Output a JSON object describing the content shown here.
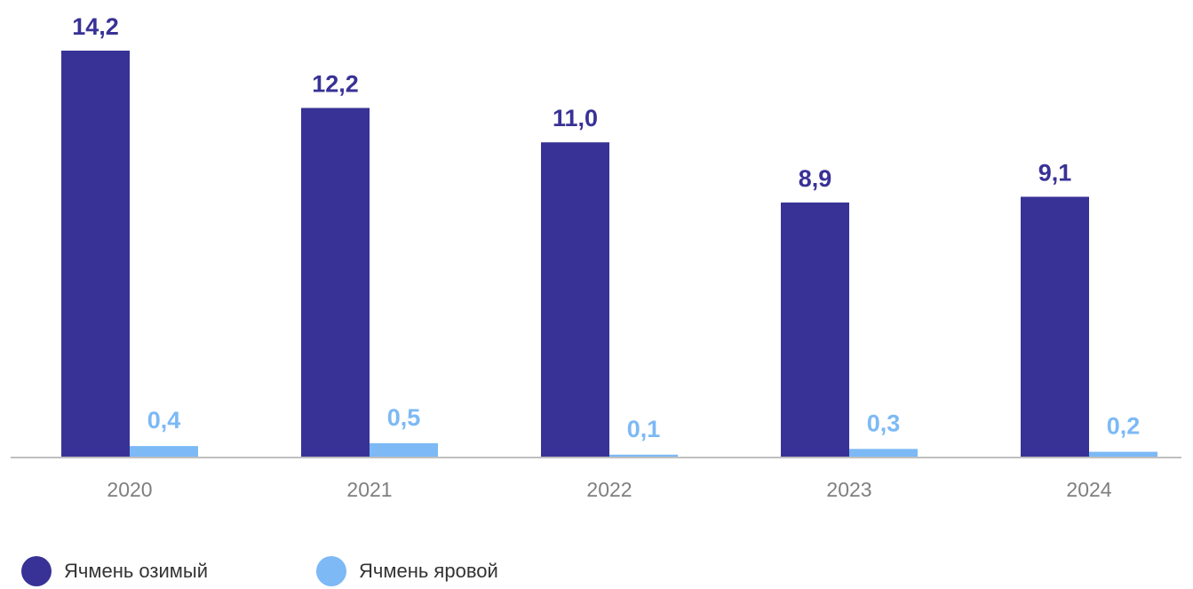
{
  "chart_data": {
    "type": "bar",
    "categories": [
      "2020",
      "2021",
      "2022",
      "2023",
      "2024"
    ],
    "series": [
      {
        "name": "Ячмень озимый",
        "color": "#383296",
        "values": [
          14.2,
          12.2,
          11.0,
          8.9,
          9.1
        ],
        "labels": [
          "14,2",
          "12,2",
          "11,0",
          "8,9",
          "9,1"
        ]
      },
      {
        "name": "Ячмень яровой",
        "color": "#7cb9f5",
        "values": [
          0.4,
          0.5,
          0.1,
          0.3,
          0.2
        ],
        "labels": [
          "0,4",
          "0,5",
          "0,1",
          "0,3",
          "0,2"
        ]
      }
    ],
    "ylim": [
      0,
      14.2
    ],
    "grid": false,
    "legend_position": "bottom-left"
  }
}
